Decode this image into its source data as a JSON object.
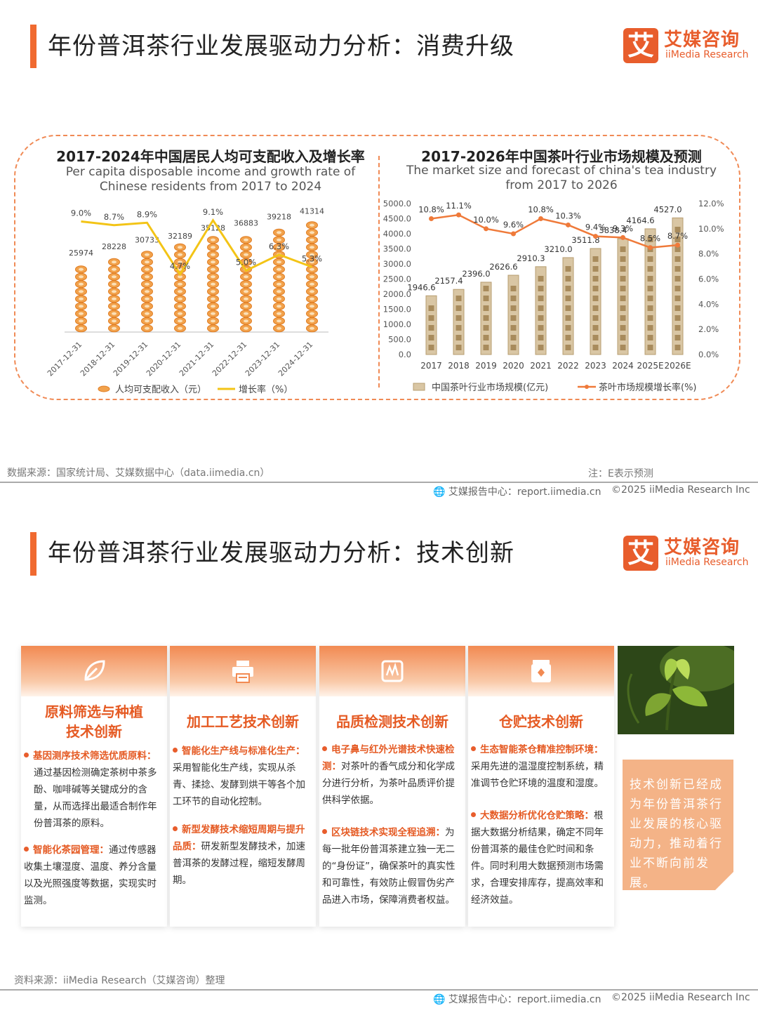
{
  "section1": {
    "title": "年份普洱茶行业发展驱动力分析：消费升级",
    "logo": {
      "cn": "艾媒咨询",
      "en": "iiMedia Research",
      "mark": "艾"
    },
    "left_chart": {
      "title": "2017-2024年中国居民人均可支配收入及增长率",
      "subtitle": "Per capita disposable income and growth rate of Chinese residents from 2017 to 2024",
      "legend_bar": "人均可支配收入（元）",
      "legend_line": "增长率（%）"
    },
    "right_chart": {
      "title": "2017-2026年中国茶叶行业市场规模及预测",
      "subtitle": "The market size and forecast of china's tea industry from 2017 to 2026",
      "legend_bar": "中国茶叶行业市场规模(亿元)",
      "legend_line": "茶叶市场规模增长率(%)"
    },
    "source": "数据来源：国家统计局、艾媒数据中心（data.iimedia.cn）",
    "note": "注：E表示预测",
    "footer_report": "艾媒报告中心：report.iimedia.cn",
    "footer_copy": "©2025  iiMedia Research  Inc"
  },
  "chart_data": [
    {
      "type": "bar",
      "title": "2017-2024年中国居民人均可支配收入及增长率",
      "categories": [
        "2017-12-31",
        "2018-12-31",
        "2019-12-31",
        "2020-12-31",
        "2021-12-31",
        "2022-12-31",
        "2023-12-31",
        "2024-12-31"
      ],
      "series": [
        {
          "name": "人均可支配收入（元）",
          "values": [
            25974,
            28228,
            30733,
            32189,
            35128,
            36883,
            39218,
            41314
          ]
        },
        {
          "name": "增长率（%）",
          "values": [
            9.0,
            8.7,
            8.9,
            4.7,
            9.1,
            5.0,
            6.3,
            5.3
          ],
          "labels": [
            "9.0%",
            "8.7%",
            "8.9%",
            "4.7%",
            "9.1%",
            "5.0%",
            "6.3%",
            "5.3%"
          ]
        }
      ],
      "ylim": [
        0,
        45000
      ],
      "y2lim": [
        0,
        10
      ],
      "legend": "bottom"
    },
    {
      "type": "bar",
      "title": "2017-2026年中国茶叶行业市场规模及预测",
      "categories": [
        "2017",
        "2018",
        "2019",
        "2020",
        "2021",
        "2022",
        "2023",
        "2024",
        "2025E",
        "2026E"
      ],
      "series": [
        {
          "name": "中国茶叶行业市场规模(亿元)",
          "values": [
            1946.6,
            2157.4,
            2396.0,
            2626.6,
            2910.3,
            3210.0,
            3511.8,
            3838.4,
            4164.6,
            4527.0
          ]
        },
        {
          "name": "茶叶市场规模增长率(%)",
          "values": [
            10.8,
            11.1,
            10.0,
            9.6,
            10.8,
            10.3,
            9.4,
            9.3,
            8.5,
            8.7
          ],
          "labels": [
            "10.8%",
            "11.1%",
            "10.0%",
            "9.6%",
            "10.8%",
            "10.3%",
            "9.4%",
            "9.3%",
            "8.5%",
            "8.7%"
          ]
        }
      ],
      "yticks": [
        "0.0",
        "500.0",
        "1000.0",
        "1500.0",
        "2000.0",
        "2500.0",
        "3000.0",
        "3500.0",
        "4000.0",
        "4500.0",
        "5000.0"
      ],
      "y2ticks": [
        "0.0%",
        "2.0%",
        "4.0%",
        "6.0%",
        "8.0%",
        "10.0%",
        "12.0%"
      ],
      "ylim": [
        0,
        5000
      ],
      "y2lim": [
        0,
        12
      ],
      "legend": "bottom"
    }
  ],
  "section2": {
    "title": "年份普洱茶行业发展驱动力分析：技术创新",
    "logo": {
      "cn": "艾媒咨询",
      "en": "iiMedia Research",
      "mark": "艾"
    },
    "cards": [
      {
        "title_line1": "原料筛选与种植",
        "title_line2": "技术创新",
        "icon": "leaf-icon",
        "items": [
          {
            "head": "基因测序技术筛选优质原料：",
            "text": "通过基因检测确定茶树中茶多酚、咖啡碱等关键成分的含量，从而选择出最适合制作年份普洱茶的原料。"
          },
          {
            "head": "智能化茶园管理：",
            "text": "通过传感器收集土壤湿度、温度、养分含量以及光照强度等数据，实现实时监测。"
          }
        ]
      },
      {
        "title_line1": "加工工艺技术创新",
        "title_line2": "",
        "icon": "printer-icon",
        "items": [
          {
            "head": "智能化生产线与标准化生产：",
            "text": "采用智能化生产线，实现从杀青、揉捻、发酵到烘干等各个加工环节的自动化控制。"
          },
          {
            "head": "新型发酵技术缩短周期与提升品质：",
            "text": "研发新型发酵技术，加速普洱茶的发酵过程，缩短发酵周期。"
          }
        ]
      },
      {
        "title_line1": "品质检测技术创新",
        "title_line2": "",
        "icon": "sensor-icon",
        "items": [
          {
            "head": "电子鼻与红外光谱技术快速检测：",
            "text": "对茶叶的香气成分和化学成分进行分析，为茶叶品质评价提供科学依据。"
          },
          {
            "head": "区块链技术实现全程追溯：",
            "text": "为每一批年份普洱茶建立独一无二的“身份证”，确保茶叶的真实性和可靠性，有效防止假冒伪劣产品进入市场，保障消费者权益。"
          }
        ]
      },
      {
        "title_line1": "仓贮技术创新",
        "title_line2": "",
        "icon": "storage-icon",
        "items": [
          {
            "head": "生态智能茶仓精准控制环境：",
            "text": "采用先进的温湿度控制系统，精准调节仓贮环境的温度和湿度。"
          },
          {
            "head": "大数据分析优化仓贮策略：",
            "text": "根据大数据分析结果，确定不同年份普洱茶的最佳仓贮时间和条件。同时利用大数据预测市场需求，合理安排库存，提高效率和经济效益。"
          }
        ]
      }
    ],
    "callout": "技术创新已经成为年份普洱茶行业发展的核心驱动力，推动着行业不断向前发展。",
    "source": "资料来源：iiMedia Research（艾媒咨询）整理",
    "footer_report": "艾媒报告中心：report.iimedia.cn",
    "footer_copy": "©2025  iiMedia Research  Inc"
  }
}
